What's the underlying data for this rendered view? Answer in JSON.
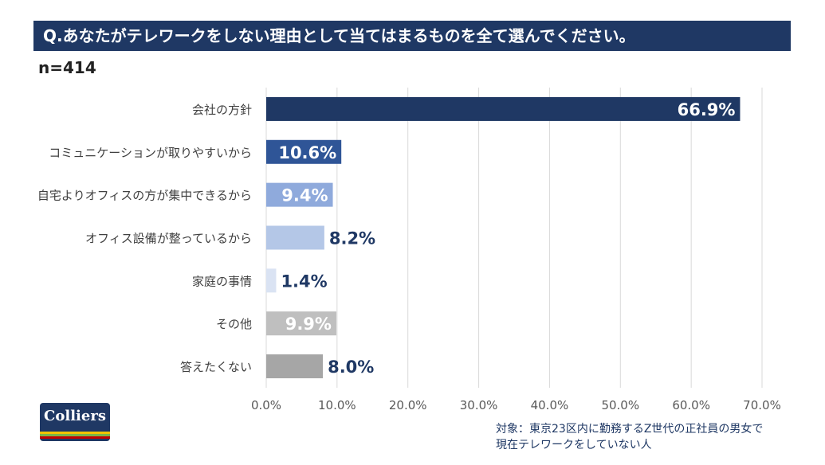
{
  "title": "Q.あなたがテレワークをしない理由として当てはまるものを全て選んでください。",
  "sample": "n=414",
  "logo": {
    "text": "Colliers"
  },
  "footnote": {
    "line1": "対象：東京23区内に勤務するZ世代の正社員の男女で",
    "line2": "現在テレワークをしていない人"
  },
  "colors": {
    "title_bg": "#1f3864",
    "text": "#1f3864",
    "grid": "#d9d9d9"
  },
  "chart_data": {
    "type": "bar",
    "orientation": "horizontal",
    "categories": [
      "会社の方針",
      "コミュニケーションが取りやすいから",
      "自宅よりオフィスの方が集中できるから",
      "オフィス設備が整っているから",
      "家庭の事情",
      "その他",
      "答えたくない"
    ],
    "values": [
      66.9,
      10.6,
      9.4,
      8.2,
      1.4,
      9.9,
      8.0
    ],
    "labels": [
      "66.9%",
      "10.6%",
      "9.4%",
      "8.2%",
      "1.4%",
      "9.9%",
      "8.0%"
    ],
    "colors": [
      "#1f3864",
      "#2f5597",
      "#8faadc",
      "#b4c7e7",
      "#dae3f3",
      "#bfbfbf",
      "#a6a6a6"
    ],
    "xlim": [
      0,
      70
    ],
    "xticks": [
      "0.0%",
      "10.0%",
      "20.0%",
      "30.0%",
      "40.0%",
      "50.0%",
      "60.0%",
      "70.0%"
    ],
    "grid": true
  }
}
